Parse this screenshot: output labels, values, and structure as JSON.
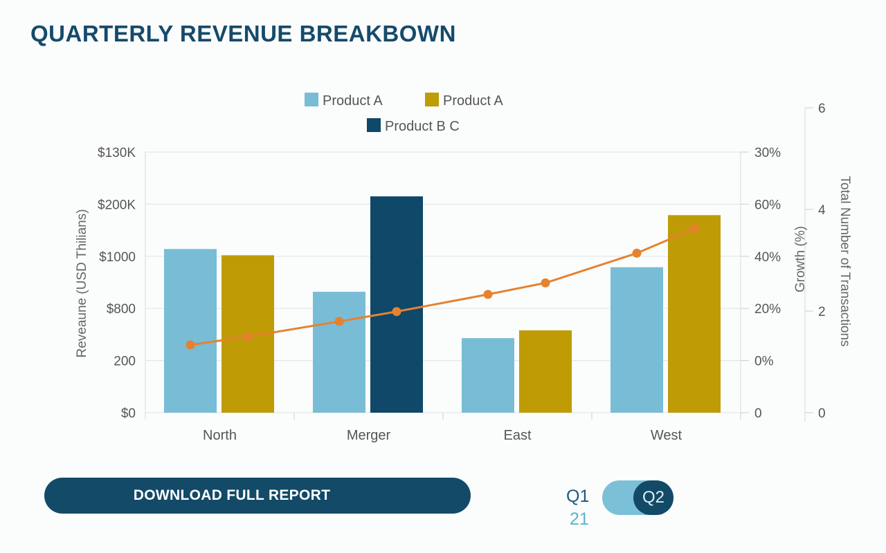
{
  "title": "QUARTERLY REVENUE BREAKBOWN",
  "download_label": "DOWNLOAD FULL REPORT",
  "toggle": {
    "left_label": "Q1",
    "left_sub": "21",
    "right_label": "Q2",
    "selected": "Q2"
  },
  "chart_data": {
    "type": "bar",
    "categories": [
      "North",
      "Merger",
      "East",
      "West"
    ],
    "legend": [
      {
        "name": "Product A",
        "color": "#78bdd5"
      },
      {
        "name": "Product A",
        "color": "#bf9b05"
      },
      {
        "name": "Product B C",
        "color": "#0f4868"
      }
    ],
    "legend_placement": "top-center",
    "left_axis": {
      "label": "Reveaune (USD Thilians)",
      "ticks": [
        "$0",
        "200",
        "$800",
        "$1000",
        "$200K",
        "$130K"
      ],
      "range": [
        0,
        5
      ]
    },
    "right_axis_1": {
      "label": "Growth (%)",
      "ticks": [
        "0",
        "0%",
        "20%",
        "40%",
        "60%",
        "30%"
      ]
    },
    "right_axis_2": {
      "label": "Total Number of Transactions",
      "ticks": [
        "0",
        "2",
        "4",
        "6"
      ],
      "range": [
        0,
        6
      ]
    },
    "bars": [
      {
        "category": "North",
        "series": [
          {
            "color": "#78bdd5",
            "value": 3.14
          },
          {
            "color": "#bf9b05",
            "value": 3.02
          }
        ]
      },
      {
        "category": "Merger",
        "series": [
          {
            "color": "#78bdd5",
            "value": 2.32
          },
          {
            "color": "#0f4868",
            "value": 4.15
          }
        ]
      },
      {
        "category": "East",
        "series": [
          {
            "color": "#78bdd5",
            "value": 1.43
          },
          {
            "color": "#bf9b05",
            "value": 1.58
          }
        ]
      },
      {
        "category": "West",
        "series": [
          {
            "color": "#78bdd5",
            "value": 2.79
          },
          {
            "color": "#bf9b05",
            "value": 3.79
          }
        ]
      }
    ],
    "line": {
      "name": "Growth",
      "color": "#e5822f",
      "values": [
        1.3,
        1.46,
        1.75,
        1.94,
        2.27,
        2.49,
        3.06,
        3.53
      ]
    },
    "grid": true
  }
}
